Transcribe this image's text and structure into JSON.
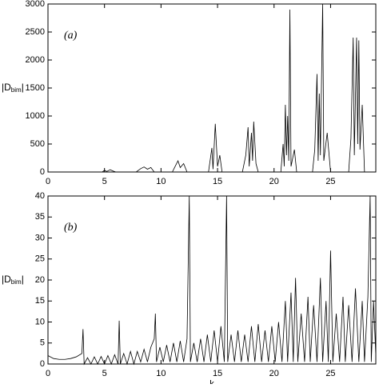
{
  "chart_data": [
    {
      "type": "line",
      "annotation": "(a)",
      "ylabel": {
        "main": "|D",
        "sub": "bim",
        "close": "|"
      },
      "xlim": [
        0,
        29
      ],
      "xticks": [
        0,
        5,
        10,
        15,
        20,
        25
      ],
      "ylim": [
        0,
        3000
      ],
      "yticks": [
        0,
        500,
        1000,
        1500,
        2000,
        2500,
        3000
      ],
      "x": [
        0,
        4.8,
        5.0,
        5.2,
        5.5,
        5.8,
        6.0,
        7.8,
        8.2,
        8.5,
        8.8,
        9.1,
        9.4,
        11.0,
        11.3,
        11.5,
        11.7,
        12.0,
        12.3,
        14.2,
        14.5,
        14.6,
        14.8,
        15.0,
        15.2,
        15.4,
        17.2,
        17.5,
        17.7,
        17.8,
        18.0,
        18.1,
        18.2,
        18.4,
        18.6,
        20.6,
        20.8,
        20.9,
        21.0,
        21.1,
        21.2,
        21.3,
        21.4,
        21.5,
        21.8,
        22.0,
        23.4,
        23.6,
        23.8,
        23.9,
        24.0,
        24.1,
        24.3,
        24.4,
        24.7,
        25.0,
        26.6,
        26.8,
        27.0,
        27.1,
        27.3,
        27.4,
        27.5,
        27.6,
        27.8,
        28.0,
        29
      ],
      "series": [
        {
          "color": "#000000",
          "values": [
            0,
            0,
            30,
            10,
            40,
            15,
            0,
            0,
            60,
            90,
            50,
            80,
            0,
            0,
            120,
            200,
            80,
            150,
            0,
            0,
            430,
            50,
            860,
            100,
            300,
            0,
            0,
            300,
            800,
            100,
            700,
            200,
            900,
            150,
            0,
            0,
            500,
            100,
            1200,
            300,
            1000,
            200,
            2900,
            100,
            400,
            0,
            0,
            400,
            1750,
            200,
            1400,
            300,
            3000,
            200,
            700,
            0,
            0,
            600,
            2400,
            300,
            2400,
            500,
            2350,
            400,
            1200,
            0,
            0
          ]
        }
      ]
    },
    {
      "type": "line",
      "annotation": "(b)",
      "xlabel": "k",
      "ylabel": {
        "main": "|D",
        "sub": "bim",
        "close": "|"
      },
      "xlim": [
        0,
        29
      ],
      "xticks": [
        0,
        5,
        10,
        15,
        20,
        25
      ],
      "ylim": [
        0,
        40
      ],
      "yticks": [
        0,
        5,
        10,
        15,
        20,
        25,
        30,
        35,
        40
      ],
      "x": [
        0,
        0.5,
        1,
        1.5,
        2,
        2.5,
        3,
        3.1,
        3.2,
        3.5,
        3.8,
        4.1,
        4.4,
        4.7,
        5.0,
        5.3,
        5.6,
        5.9,
        6.2,
        6.3,
        6.4,
        6.7,
        7.0,
        7.3,
        7.6,
        7.9,
        8.2,
        8.5,
        8.8,
        9.1,
        9.4,
        9.5,
        9.6,
        9.9,
        10.2,
        10.5,
        10.8,
        11.1,
        11.4,
        11.7,
        12.0,
        12.3,
        12.5,
        12.6,
        12.9,
        13.2,
        13.5,
        13.8,
        14.1,
        14.4,
        14.7,
        15.0,
        15.3,
        15.6,
        15.8,
        15.9,
        16.2,
        16.5,
        16.8,
        17.1,
        17.4,
        17.7,
        18.0,
        18.3,
        18.6,
        18.9,
        19.2,
        19.5,
        19.8,
        20.1,
        20.4,
        20.7,
        21.0,
        21.2,
        21.5,
        21.7,
        21.9,
        22.1,
        22.4,
        22.7,
        23.0,
        23.2,
        23.5,
        23.8,
        24.1,
        24.3,
        24.6,
        24.8,
        25.0,
        25.2,
        25.5,
        25.8,
        26.1,
        26.3,
        26.6,
        26.9,
        27.2,
        27.5,
        27.8,
        28.0,
        28.3,
        28.5,
        28.6,
        28.8,
        29
      ],
      "series": [
        {
          "color": "#000000",
          "values": [
            2,
            1.3,
            1.1,
            1.1,
            1.3,
            1.7,
            2.5,
            8.3,
            0,
            1.5,
            0,
            1.7,
            0,
            1.8,
            0,
            2,
            0,
            2.2,
            0,
            10.3,
            0,
            2.5,
            0,
            3,
            0,
            3,
            0.5,
            3.5,
            0.5,
            4,
            6,
            12,
            0.5,
            4,
            0.5,
            4.5,
            0.5,
            5,
            0.5,
            5.5,
            0.5,
            6,
            40,
            0.5,
            5,
            0.5,
            6,
            0.5,
            7,
            0.5,
            8,
            0.5,
            9,
            0.5,
            40,
            0.5,
            7,
            0.5,
            8,
            0.5,
            7,
            0.5,
            9,
            0.5,
            9.5,
            0.5,
            8,
            0.5,
            9,
            0.5,
            10,
            0.5,
            15,
            0.5,
            17,
            0.5,
            20.5,
            0.5,
            12,
            0.5,
            16,
            0.5,
            14,
            0.5,
            20.5,
            0.5,
            15,
            0.5,
            27,
            0.5,
            12,
            0.5,
            16,
            0.5,
            14,
            0.5,
            18,
            0.5,
            15,
            0.5,
            16,
            40,
            0.5,
            15,
            2
          ]
        }
      ]
    }
  ]
}
